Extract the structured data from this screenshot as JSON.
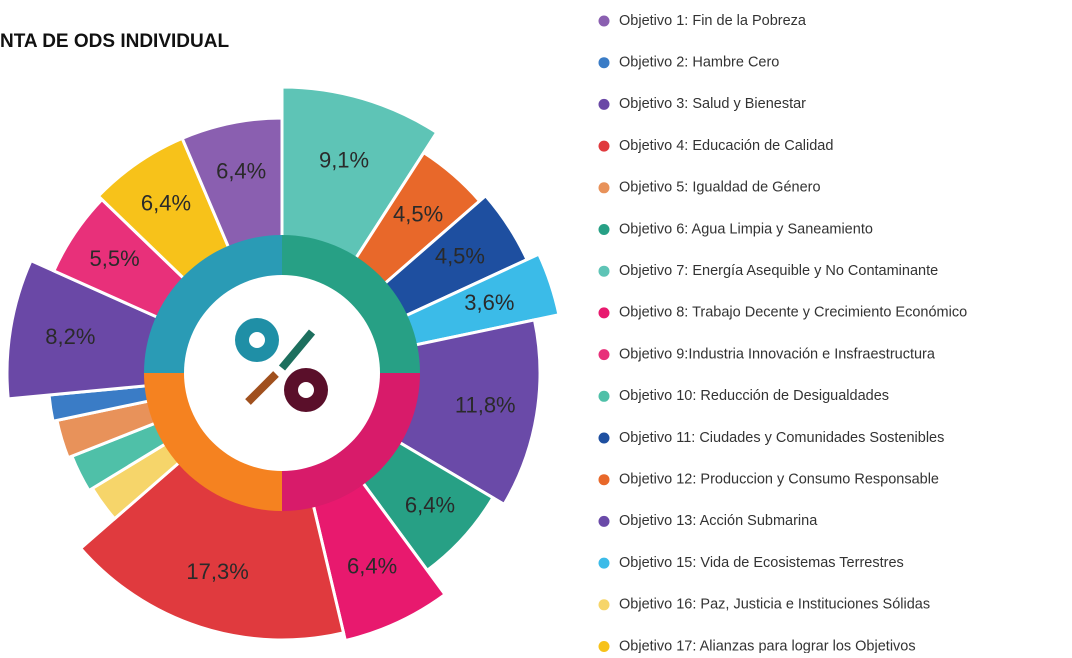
{
  "chart_data": {
    "type": "pie",
    "title": "NTA DE ODS INDIVIDUAL",
    "categories": [
      "Objetivo 1: Fin de la Pobreza",
      "Objetivo 2: Hambre Cero",
      "Objetivo 3: Salud y Bienestar",
      "Objetivo 4: Educación de Calidad",
      "Objetivo 5: Igualdad de Género",
      "Objetivo 6: Agua Limpia y Saneamiento",
      "Objetivo 7: Energía Asequible y No Contaminante",
      "Objetivo 8: Trabajo Decente y Crecimiento Económico",
      "Objetivo 9:Industria Innovación e Insfraestructura",
      "Objetivo 10: Reducción de Desigualdades",
      "Objetivo 11: Ciudades y Comunidades Sostenibles",
      "Objetivo 12: Produccion y Consumo Responsable",
      "Objetivo 13: Acción Submarina",
      "Objetivo 15: Vida de Ecosistemas Terrestres",
      "Objetivo 16: Paz, Justicia e Instituciones Sólidas",
      "Objetivo 17: Alianzas para lograr los Objetivos"
    ],
    "values": [
      6.4,
      1.8,
      8.2,
      17.3,
      2.7,
      6.4,
      9.1,
      6.4,
      5.5,
      2.7,
      4.5,
      4.5,
      11.8,
      3.6,
      2.7,
      6.4
    ],
    "value_labels": [
      "6,4%",
      null,
      "8,2%",
      "17,3%",
      null,
      "6,4%",
      "9,1%",
      "6,4%",
      "5,5%",
      null,
      "4,5%",
      "4,5%",
      "11,8%",
      "3,6%",
      null,
      "6,4%"
    ],
    "colors": [
      "#8a5fb0",
      "#3a7cc6",
      "#6a48a6",
      "#e03a3e",
      "#e8925a",
      "#27a085",
      "#5ec4b6",
      "#e8196e",
      "#e8307a",
      "#4fc0a8",
      "#1e4fa0",
      "#e8682a",
      "#6a4aa8",
      "#3bbbe8",
      "#f6d56a",
      "#f7c21a"
    ]
  }
}
